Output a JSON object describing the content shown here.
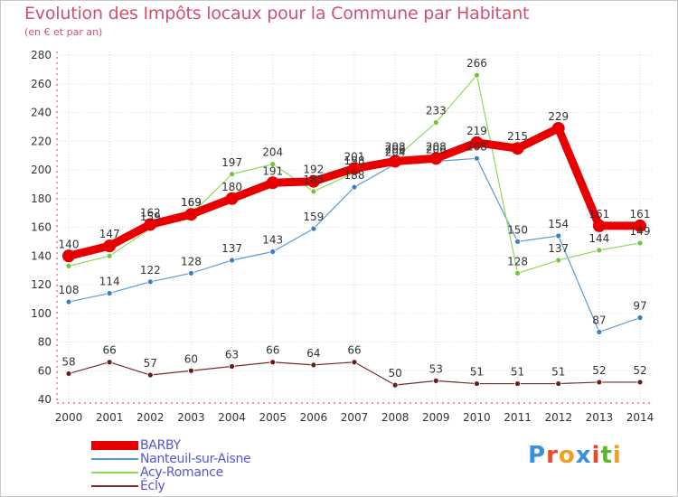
{
  "header": {
    "title": "Evolution des Impôts locaux pour la Commune par Habitant",
    "subtitle": "(en € et par an)"
  },
  "logo": {
    "text": "Proxiti",
    "letters": [
      "P",
      "r",
      "o",
      "x",
      "i",
      "t",
      "i"
    ],
    "colors": [
      "#3a8fd8",
      "#e84a2a",
      "#f0a020",
      "#3a8fd8",
      "#e84a2a",
      "#5cb82c",
      "#f0a020"
    ]
  },
  "chart_data": {
    "type": "line",
    "title": "Evolution des Impôts locaux pour la Commune par Habitant",
    "subtitle": "(en € et par an)",
    "xlabel": "",
    "ylabel": "",
    "x": [
      "2000",
      "2001",
      "2002",
      "2003",
      "2004",
      "2005",
      "2006",
      "2007",
      "2008",
      "2009",
      "2010",
      "2011",
      "2012",
      "2013",
      "2014"
    ],
    "ylim": [
      40,
      280
    ],
    "yticks": [
      40,
      60,
      80,
      100,
      120,
      140,
      160,
      180,
      200,
      220,
      240,
      260,
      280
    ],
    "grid": true,
    "legend_position": "bottom-left",
    "series": [
      {
        "name": "Nanteuil-sur-Aisne",
        "color": "#5b9bd5",
        "marker": "#3a7ec8",
        "width": 1.2,
        "values": [
          108,
          114,
          122,
          128,
          137,
          143,
          159,
          188,
          204,
          206,
          208,
          150,
          154,
          87,
          97
        ],
        "labels": [
          "108",
          "114",
          "122",
          "128",
          "137",
          "143",
          "159",
          "188",
          "204",
          "206",
          "208",
          "150",
          "154",
          "87",
          "97"
        ]
      },
      {
        "name": "Acy-Romance",
        "color": "#8fd85a",
        "marker": "#74c43e",
        "width": 1.2,
        "values": [
          133,
          140,
          159,
          169,
          197,
          204,
          185,
          198,
          208,
          233,
          266,
          128,
          137,
          144,
          149
        ],
        "labels": [
          "",
          "",
          "159",
          "169",
          "197",
          "204",
          "185",
          "198",
          "208",
          "233",
          "266",
          "128",
          "137",
          "144",
          "149"
        ]
      },
      {
        "name": "Écly",
        "color": "#7a2a2a",
        "marker": "#6a1c1c",
        "width": 1.2,
        "values": [
          58,
          66,
          57,
          60,
          63,
          66,
          64,
          66,
          50,
          53,
          51,
          51,
          51,
          52,
          52
        ],
        "labels": [
          "58",
          "66",
          "57",
          "60",
          "63",
          "66",
          "64",
          "66",
          "50",
          "53",
          "51",
          "51",
          "51",
          "52",
          "52"
        ]
      },
      {
        "name": "BARBY",
        "color": "#e80000",
        "marker": "#e80000",
        "width": 9,
        "values": [
          140,
          147,
          162,
          169,
          180,
          191,
          192,
          201,
          206,
          208,
          219,
          215,
          229,
          161,
          161
        ],
        "labels": [
          "140",
          "147",
          "162",
          "169",
          "180",
          "191",
          "192",
          "201",
          "206",
          "208",
          "219",
          "215",
          "229",
          "161",
          "161"
        ]
      }
    ],
    "legend": [
      "BARBY",
      "Nanteuil-sur-Aisne",
      "Acy-Romance",
      "Écly"
    ]
  }
}
